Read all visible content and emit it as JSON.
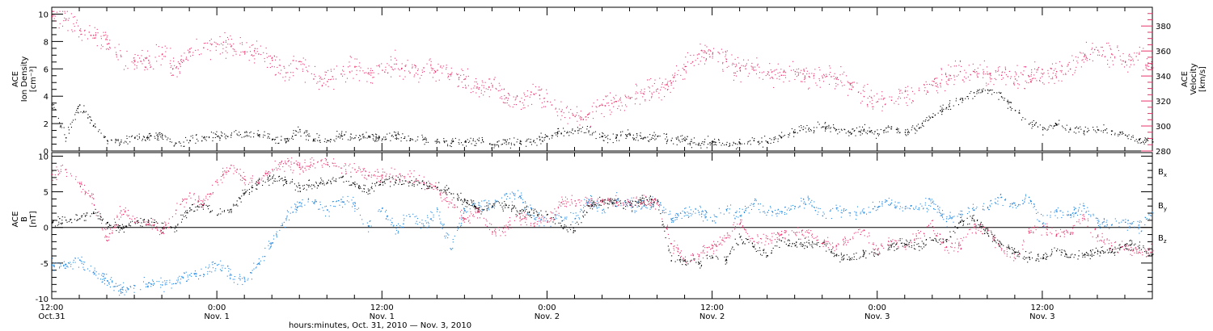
{
  "figure": {
    "xlabel": "hours:minutes, Oct. 31, 2010 — Nov.  3, 2010",
    "black": "#000000",
    "pink": "#e8336b",
    "blue": "#1f86e0"
  },
  "chart_data": [
    {
      "type": "scatter",
      "panel": "top",
      "ylabel_left": [
        "ACE",
        "Ion Density",
        "[cm⁻³]"
      ],
      "ylabel_right": [
        "ACE",
        "Velocity",
        "[km/s]"
      ],
      "x_unit": "hours since 12:00 Oct. 31, 2010",
      "xlim": [
        0,
        80
      ],
      "ylim_left": [
        0,
        10.5
      ],
      "ylim_right": [
        280,
        395
      ],
      "yticks_left": [
        0,
        2,
        4,
        6,
        8,
        10
      ],
      "yticks_right": [
        280,
        300,
        320,
        340,
        360,
        380
      ],
      "grid": false,
      "series": [
        {
          "quantity": "ion density",
          "axis": "left",
          "color": "#000000",
          "x": [
            0,
            1,
            2,
            3,
            4,
            5,
            6,
            7,
            8,
            9,
            10,
            11,
            12,
            13,
            14,
            15,
            16,
            17,
            18,
            19,
            20,
            21,
            22,
            23,
            24,
            25,
            26,
            27,
            28,
            29,
            30,
            31,
            32,
            33,
            34,
            35,
            36,
            37,
            38,
            39,
            40,
            41,
            42,
            43,
            44,
            45,
            46,
            47,
            48,
            49,
            50,
            51,
            52,
            53,
            54,
            55,
            56,
            57,
            58,
            59,
            60,
            61,
            62,
            63,
            64,
            65,
            66,
            67,
            68,
            69,
            70,
            71,
            72,
            73,
            74,
            75,
            76,
            77,
            78,
            79,
            80
          ],
          "y": [
            3.4,
            1.0,
            3.4,
            1.9,
            0.8,
            0.7,
            1.0,
            1.0,
            1.2,
            0.6,
            0.8,
            1.0,
            1.1,
            1.2,
            1.4,
            1.2,
            0.9,
            0.7,
            1.6,
            0.9,
            0.8,
            1.2,
            1.0,
            1.1,
            0.9,
            1.2,
            0.8,
            0.9,
            0.7,
            0.6,
            0.7,
            0.8,
            0.5,
            0.7,
            0.6,
            0.8,
            1.1,
            1.3,
            1.5,
            1.5,
            1.1,
            1.0,
            1.2,
            1.0,
            1.1,
            0.8,
            0.8,
            0.6,
            0.7,
            0.5,
            0.6,
            0.8,
            0.7,
            1.0,
            1.4,
            1.7,
            1.8,
            1.6,
            1.4,
            1.6,
            1.3,
            1.8,
            1.4,
            1.7,
            2.5,
            3.2,
            3.8,
            4.3,
            4.5,
            4.0,
            3.0,
            2.0,
            1.6,
            2.0,
            1.6,
            1.5,
            1.6,
            1.5,
            1.2,
            0.9,
            0.7
          ]
        },
        {
          "quantity": "velocity",
          "axis": "right",
          "color": "#e8336b",
          "x": [
            0,
            1,
            2,
            3,
            4,
            5,
            6,
            7,
            8,
            9,
            10,
            11,
            12,
            13,
            14,
            15,
            16,
            17,
            18,
            19,
            20,
            21,
            22,
            23,
            24,
            25,
            26,
            27,
            28,
            29,
            30,
            31,
            32,
            33,
            34,
            35,
            36,
            37,
            38,
            39,
            40,
            41,
            42,
            43,
            44,
            45,
            46,
            47,
            48,
            49,
            50,
            51,
            52,
            53,
            54,
            55,
            56,
            57,
            58,
            59,
            60,
            61,
            62,
            63,
            64,
            65,
            66,
            67,
            68,
            69,
            70,
            71,
            72,
            73,
            74,
            75,
            76,
            77,
            78,
            79,
            80
          ],
          "y": [
            388,
            386,
            377,
            373,
            366,
            356,
            352,
            353,
            358,
            347,
            362,
            363,
            366,
            364,
            360,
            358,
            353,
            343,
            352,
            338,
            336,
            342,
            348,
            343,
            345,
            350,
            343,
            347,
            345,
            342,
            338,
            330,
            333,
            323,
            320,
            326,
            320,
            312,
            308,
            310,
            317,
            320,
            323,
            326,
            330,
            335,
            348,
            358,
            358,
            352,
            345,
            345,
            342,
            341,
            344,
            340,
            339,
            338,
            334,
            324,
            320,
            321,
            328,
            329,
            333,
            340,
            344,
            344,
            342,
            341,
            338,
            340,
            342,
            344,
            346,
            356,
            361,
            358,
            352,
            358,
            347
          ]
        }
      ]
    },
    {
      "type": "scatter",
      "panel": "bottom",
      "ylabel_left": [
        "ACE",
        "B",
        "[nT]"
      ],
      "x_unit": "hours since 12:00 Oct. 31, 2010",
      "xlim": [
        0,
        80
      ],
      "ylim": [
        -10,
        10.5
      ],
      "yticks": [
        -10,
        -5,
        0,
        5,
        10
      ],
      "zero_line": true,
      "grid": false,
      "series": [
        {
          "name": "B",
          "sub": "x",
          "color": "#000000",
          "x": [
            0,
            1,
            2,
            3,
            4,
            5,
            6,
            7,
            8,
            9,
            10,
            11,
            12,
            13,
            14,
            15,
            16,
            17,
            18,
            19,
            20,
            21,
            22,
            23,
            24,
            25,
            26,
            27,
            28,
            29,
            30,
            31,
            32,
            33,
            34,
            35,
            36,
            37,
            38,
            39,
            40,
            41,
            42,
            43,
            44,
            45,
            46,
            47,
            48,
            49,
            50,
            51,
            52,
            53,
            54,
            55,
            56,
            57,
            58,
            59,
            60,
            61,
            62,
            63,
            64,
            65,
            66,
            67,
            68,
            69,
            70,
            71,
            72,
            73,
            74,
            75,
            76,
            77,
            78,
            79,
            80
          ],
          "y": [
            0.8,
            1.1,
            1.3,
            2.2,
            0.7,
            0.0,
            0.8,
            1.0,
            0.0,
            0.1,
            2.8,
            3.3,
            1.8,
            2.6,
            4.9,
            6.2,
            7.0,
            6.5,
            5.6,
            6.0,
            6.3,
            7.1,
            6.1,
            5.2,
            6.4,
            6.7,
            6.4,
            6.1,
            5.7,
            4.8,
            3.9,
            2.6,
            3.1,
            3.2,
            2.4,
            2.1,
            1.9,
            0.3,
            -0.4,
            3.1,
            3.7,
            3.6,
            3.2,
            3.8,
            3.9,
            -4.6,
            -4.6,
            -4.9,
            -4.2,
            -4.4,
            -1.3,
            -2.6,
            -3.9,
            -1.8,
            -2.5,
            -2.1,
            -2.2,
            -3.9,
            -4.3,
            -3.7,
            -3.7,
            -2.5,
            -2.3,
            -2.6,
            -1.7,
            -1.9,
            0.8,
            1.1,
            -0.8,
            -2.3,
            -3.4,
            -4.1,
            -4.3,
            -3.2,
            -4.1,
            -3.8,
            -3.3,
            -3.4,
            -2.3,
            -2.8,
            -3.7
          ]
        },
        {
          "name": "B",
          "sub": "y",
          "color": "#1f86e0",
          "x": [
            0,
            1,
            2,
            3,
            4,
            5,
            6,
            7,
            8,
            9,
            10,
            11,
            12,
            13,
            14,
            15,
            16,
            17,
            18,
            19,
            20,
            21,
            22,
            23,
            24,
            25,
            26,
            27,
            28,
            29,
            30,
            31,
            32,
            33,
            34,
            35,
            36,
            37,
            38,
            39,
            40,
            41,
            42,
            43,
            44,
            45,
            46,
            47,
            48,
            49,
            50,
            51,
            52,
            53,
            54,
            55,
            56,
            57,
            58,
            59,
            60,
            61,
            62,
            63,
            64,
            65,
            66,
            67,
            68,
            69,
            70,
            71,
            72,
            73,
            74,
            75,
            76,
            77,
            78,
            79,
            80
          ],
          "y": [
            -5.2,
            -5.1,
            -4.5,
            -6.2,
            -7.4,
            -8.6,
            -8.1,
            -7.7,
            -8.0,
            -7.8,
            -6.6,
            -6.5,
            -5.2,
            -6.6,
            -7.5,
            -5.0,
            -2.1,
            1.3,
            3.6,
            3.5,
            2.5,
            4.0,
            3.1,
            0.3,
            2.8,
            0.0,
            1.6,
            0.3,
            2.6,
            -3.0,
            2.4,
            3.2,
            3.0,
            4.8,
            4.4,
            1.7,
            1.0,
            1.5,
            1.3,
            4.0,
            2.5,
            3.9,
            3.3,
            3.1,
            3.7,
            1.2,
            2.1,
            2.2,
            1.0,
            2.6,
            1.7,
            3.4,
            2.2,
            2.3,
            3.0,
            4.1,
            1.7,
            2.8,
            2.1,
            2.1,
            2.9,
            3.5,
            2.7,
            2.8,
            3.6,
            0.9,
            1.9,
            2.5,
            2.8,
            4.3,
            3.2,
            4.3,
            0.6,
            2.3,
            1.8,
            3.1,
            0.7,
            0.4,
            0.8,
            0.1,
            2.1
          ]
        },
        {
          "name": "B",
          "sub": "z",
          "color": "#e8336b",
          "x": [
            0,
            1,
            2,
            3,
            4,
            5,
            6,
            7,
            8,
            9,
            10,
            11,
            12,
            13,
            14,
            15,
            16,
            17,
            18,
            19,
            20,
            21,
            22,
            23,
            24,
            25,
            26,
            27,
            28,
            29,
            30,
            31,
            32,
            33,
            34,
            35,
            36,
            37,
            38,
            39,
            40,
            41,
            42,
            43,
            44,
            45,
            46,
            47,
            48,
            49,
            50,
            51,
            52,
            53,
            54,
            55,
            56,
            57,
            58,
            59,
            60,
            61,
            62,
            63,
            64,
            65,
            66,
            67,
            68,
            69,
            70,
            71,
            72,
            73,
            74,
            75,
            76,
            77,
            78,
            79,
            80
          ],
          "y": [
            7.5,
            8.2,
            6.2,
            4.1,
            -1.8,
            2.4,
            1.3,
            0.5,
            -0.7,
            2.5,
            4.9,
            3.3,
            6.4,
            8.8,
            6.8,
            6.6,
            8.2,
            9.0,
            8.5,
            9.0,
            8.9,
            8.4,
            8.2,
            7.3,
            7.4,
            7.3,
            7.2,
            6.4,
            5.4,
            3.5,
            1.3,
            2.3,
            -0.6,
            0.1,
            1.4,
            0.6,
            0.8,
            3.6,
            3.8,
            3.5,
            4.0,
            3.6,
            3.6,
            3.6,
            3.6,
            -2.2,
            -4.5,
            -4.0,
            -2.8,
            -1.4,
            0.6,
            -1.9,
            -1.5,
            -0.9,
            -0.7,
            -0.7,
            -2.2,
            -2.5,
            -1.6,
            -0.3,
            -3.1,
            -1.9,
            -2.7,
            -0.7,
            0.2,
            -2.7,
            -2.4,
            0.1,
            -0.3,
            -2.9,
            -4.3,
            -0.7,
            0.2,
            -0.9,
            -0.9,
            1.3,
            -1.2,
            -2.5,
            -2.6,
            -3.4,
            -3.2
          ]
        }
      ]
    }
  ],
  "x_ticks": [
    {
      "x": 0,
      "time": "12:00",
      "date": "Oct.31"
    },
    {
      "x": 12,
      "time": "0:00",
      "date": "Nov. 1"
    },
    {
      "x": 24,
      "time": "12:00",
      "date": "Nov. 1"
    },
    {
      "x": 36,
      "time": "0:00",
      "date": "Nov. 2"
    },
    {
      "x": 48,
      "time": "12:00",
      "date": "Nov. 2"
    },
    {
      "x": 60,
      "time": "0:00",
      "date": "Nov. 3"
    },
    {
      "x": 72,
      "time": "12:00",
      "date": "Nov. 3"
    }
  ],
  "legend_bottom": [
    {
      "base": "B",
      "sub": "x",
      "color": "#000000"
    },
    {
      "base": "B",
      "sub": "y",
      "color": "#1f86e0"
    },
    {
      "base": "B",
      "sub": "z",
      "color": "#e8336b"
    }
  ]
}
